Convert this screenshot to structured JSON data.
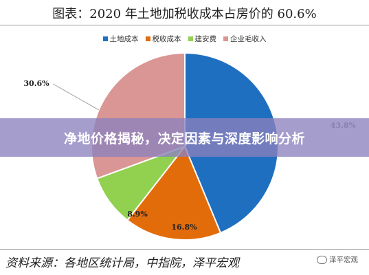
{
  "chart_data": {
    "type": "pie",
    "title": "图表：2020 年土地加税收成本占房价的 60.6%",
    "categories": [
      "土地成本",
      "税收成本",
      "建安费",
      "企业毛收入"
    ],
    "values": [
      43.8,
      16.8,
      8.9,
      30.6
    ],
    "value_labels": [
      "43.8%",
      "16.8%",
      "8.9%",
      "30.6%"
    ],
    "colors": [
      "#1f6fc0",
      "#e36c0a",
      "#92d050",
      "#da9694"
    ],
    "legend_position": "top",
    "source": "资料来源：各地区统计局，中指院，泽平宏观"
  },
  "banner": {
    "text": "净地价格揭秘，决定因素与深度影响分析"
  },
  "watermark": {
    "text": "泽平宏观"
  }
}
